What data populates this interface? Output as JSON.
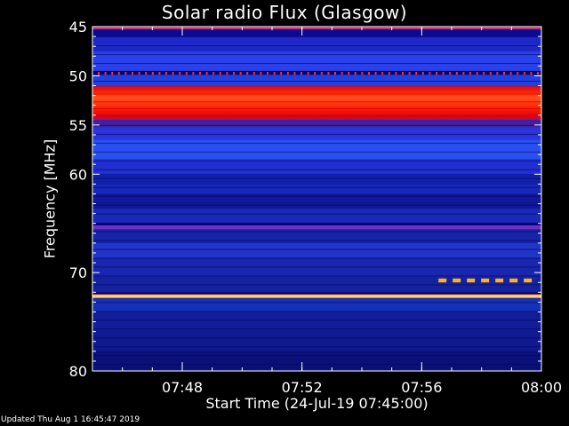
{
  "title": "Solar radio Flux (Glasgow)",
  "footer": "Updated Thu Aug  1 16:45:47 2019",
  "chart_data": {
    "type": "heatmap",
    "title": "Solar radio Flux (Glasgow)",
    "xlabel": "Start Time (24-Jul-19 07:45:00)",
    "ylabel": "Frequency [MHz]",
    "x_range": [
      "07:45:00",
      "08:00:00"
    ],
    "x_ticks": [
      "07:48",
      "07:52",
      "07:56",
      "08:00"
    ],
    "y_range": [
      45,
      80
    ],
    "y_reversed": true,
    "y_ticks": [
      "45",
      "50",
      "55",
      "60",
      "70",
      "80"
    ],
    "colors": {
      "low": "#000080",
      "mid": "#3050ff",
      "high": "#ff0000",
      "peak": "#ffff60"
    },
    "features": [
      {
        "name": "strong emission band",
        "freq_mhz": [
          51,
          54.5
        ],
        "level": "high"
      },
      {
        "name": "narrow line",
        "freq_mhz": [
          72.2,
          72.6
        ],
        "level": "peak"
      },
      {
        "name": "dotted line",
        "freq_mhz": [
          49.6,
          49.9
        ],
        "level": "high"
      },
      {
        "name": "violet band",
        "freq_mhz": [
          65.2,
          65.6
        ],
        "level": "mid"
      },
      {
        "name": "burst segment",
        "freq_mhz": [
          70.6,
          71.0
        ],
        "time": [
          "07:56:30",
          "08:00:00"
        ],
        "level": "peak"
      }
    ]
  }
}
